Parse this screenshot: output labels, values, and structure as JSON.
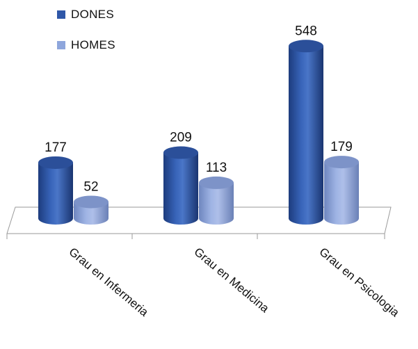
{
  "chart_data": {
    "type": "bar",
    "categories": [
      "Grau en Infermeria",
      "Grau en Medicina",
      "Grau en Psicologia"
    ],
    "series": [
      {
        "name": "DONES",
        "values": [
          177,
          209,
          548
        ],
        "color": "#2f57a8"
      },
      {
        "name": "HOMES",
        "values": [
          52,
          113,
          179
        ],
        "color": "#8ea6dc"
      }
    ],
    "legend_position": "top-left",
    "grid": false,
    "ylim": [
      0,
      600
    ],
    "style": "3d-cylinder"
  }
}
